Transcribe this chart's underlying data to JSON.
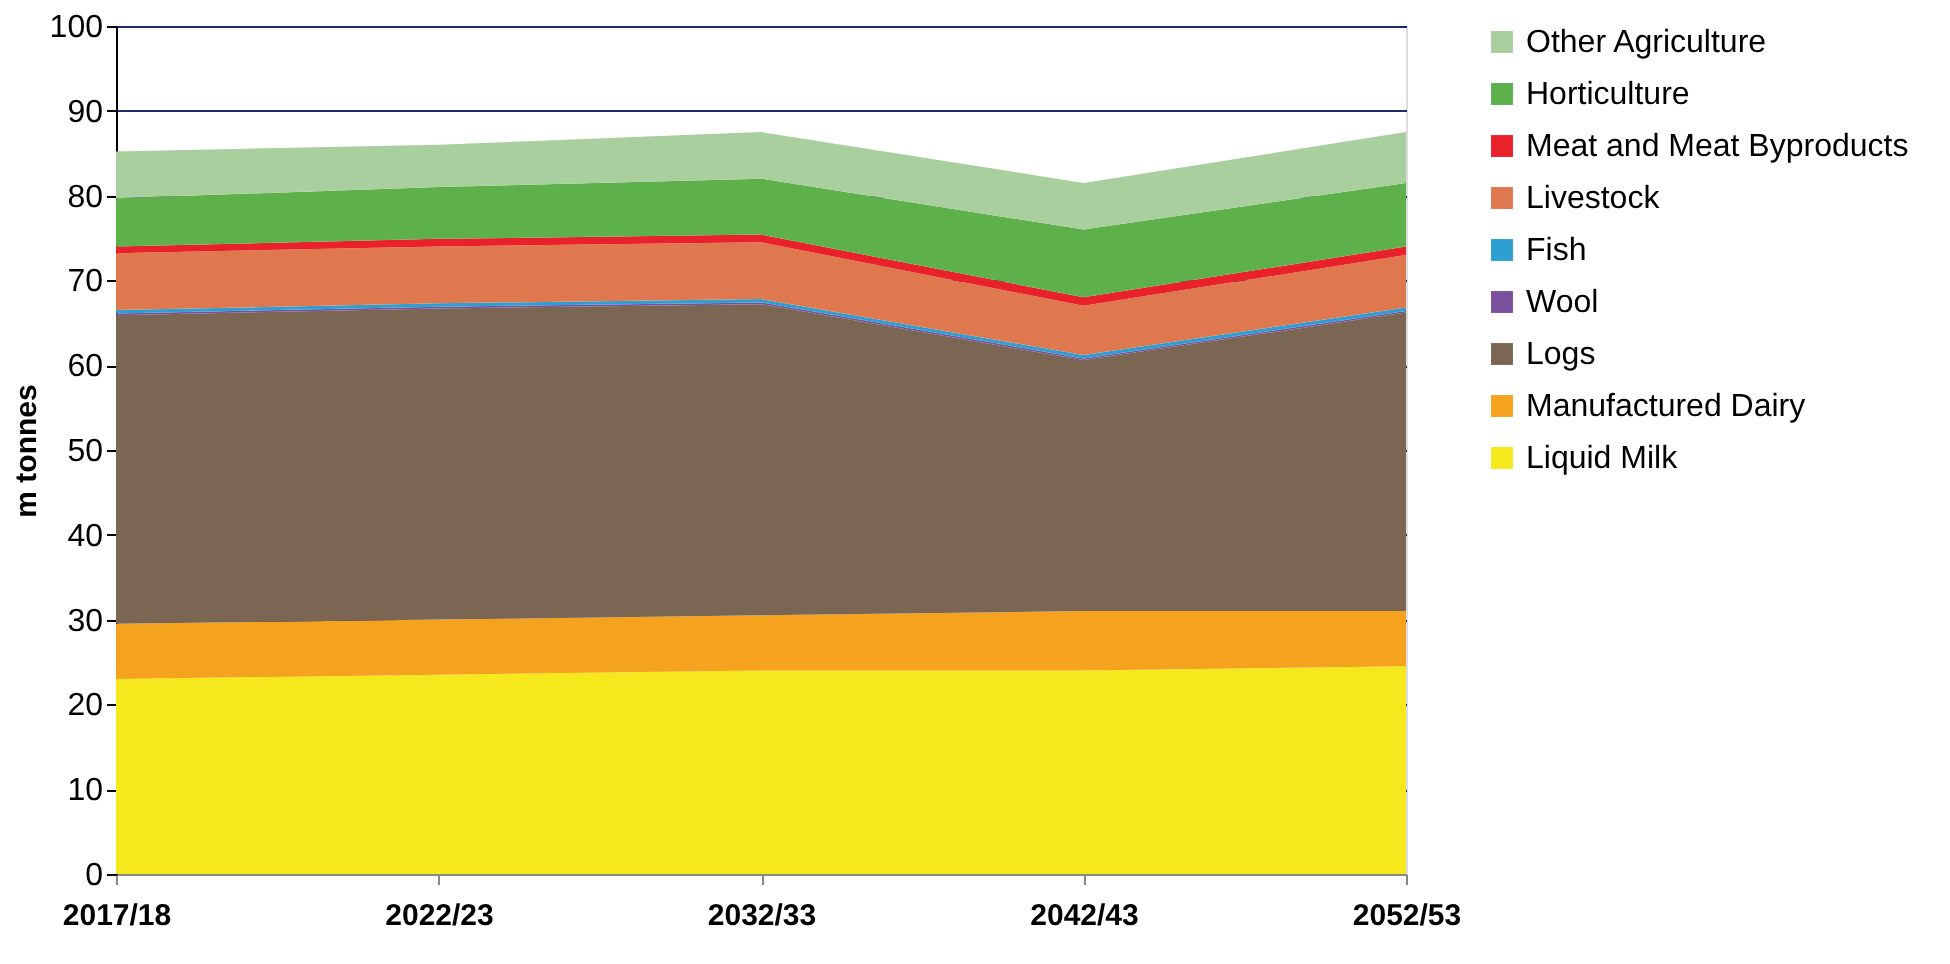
{
  "chart_data": {
    "type": "area",
    "stacked": true,
    "ylabel": "m tonnes",
    "categories": [
      "2017/18",
      "2022/23",
      "2032/33",
      "2042/43",
      "2052/53"
    ],
    "ylim": [
      0,
      100
    ],
    "yticks": [
      0,
      10,
      20,
      30,
      40,
      50,
      60,
      70,
      80,
      90,
      100
    ],
    "grid": "y",
    "legend": "right",
    "series": [
      {
        "name": "Liquid Milk",
        "color": "#f5e81c",
        "values": [
          23,
          23.5,
          24,
          24,
          24.5
        ]
      },
      {
        "name": "Manufactured Dairy",
        "color": "#f5a21f",
        "values": [
          6.5,
          6.5,
          6.5,
          7,
          6.5
        ]
      },
      {
        "name": "Logs",
        "color": "#7a6652",
        "values": [
          36.4,
          36.7,
          36.7,
          29.6,
          35.2
        ]
      },
      {
        "name": "Wool",
        "color": "#7a4f9e",
        "values": [
          0.2,
          0.2,
          0.2,
          0.2,
          0.2
        ]
      },
      {
        "name": "Fish",
        "color": "#2e9fd1",
        "values": [
          0.4,
          0.4,
          0.4,
          0.4,
          0.4
        ]
      },
      {
        "name": "Livestock",
        "color": "#e0784f",
        "values": [
          6.7,
          6.7,
          6.7,
          5.8,
          6.2
        ]
      },
      {
        "name": "Meat and Meat Byproducts",
        "color": "#e8212a",
        "values": [
          0.8,
          0.9,
          0.9,
          1,
          1
        ]
      },
      {
        "name": "Horticulture",
        "color": "#5db04a",
        "values": [
          5.7,
          6.1,
          6.6,
          8,
          7.5
        ]
      },
      {
        "name": "Other Agriculture",
        "color": "#a9cf9e",
        "values": [
          5.5,
          5,
          5.5,
          5.5,
          6
        ]
      }
    ]
  }
}
